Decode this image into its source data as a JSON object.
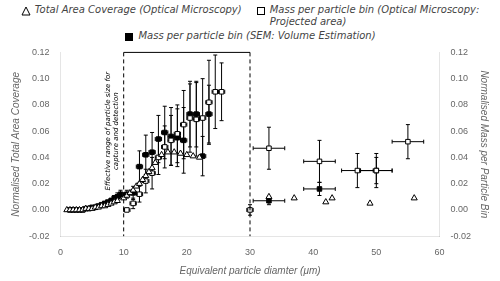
{
  "chart_data": {
    "type": "scatter",
    "xlabel": "Equivalent particle diamter (μm)",
    "ylabel": "Normalised Total Area Coverage",
    "y2label": "Normalised Mass per Particle Bin",
    "xlim": [
      0,
      60
    ],
    "xticks": [
      0,
      10,
      20,
      30,
      40,
      50,
      60
    ],
    "ylim": [
      -0.02,
      0.12
    ],
    "yticks": [
      -0.02,
      {
        "value": 0,
        "label": "0.00"
      },
      0.02,
      0.04,
      0.06,
      0.08,
      {
        "value": 0.1,
        "label": "0.10"
      },
      0.12
    ],
    "y2lim": [
      -0.02,
      0.12
    ],
    "y2ticks": [
      -0.02,
      {
        "value": 0,
        "label": "0.00"
      },
      0.02,
      0.04,
      0.06,
      0.08,
      {
        "value": 0.1,
        "label": "0.10"
      },
      0.12
    ],
    "grid": false,
    "legend": "top",
    "series": [
      {
        "name": "Total Area Coverage (Optical Microscopy)",
        "color": "#000000",
        "marker": "triangle_open",
        "axis": "y",
        "x": [
          1.0,
          1.5,
          2.0,
          2.5,
          3.0,
          3.5,
          4.0,
          4.5,
          5.0,
          5.5,
          6.0,
          6.5,
          7.0,
          7.5,
          8.0,
          8.5,
          9.0,
          10.0,
          10.5,
          11.0,
          11.5,
          12.0,
          12.5,
          13.0,
          13.5,
          14.0,
          14.5,
          15.0,
          16.0,
          17.0,
          18.0,
          19.0,
          20.0,
          21.0,
          22.0,
          33,
          37,
          42,
          43,
          49,
          56
        ],
        "values": [
          0.0,
          0.0,
          0.0,
          0.0,
          0.0,
          0.0,
          0.001,
          0.001,
          0.001,
          0.002,
          0.002,
          0.003,
          0.003,
          0.004,
          0.005,
          0.006,
          0.007,
          0.009,
          0.011,
          0.013,
          0.015,
          0.018,
          0.02,
          0.023,
          0.026,
          0.029,
          0.032,
          0.036,
          0.042,
          0.044,
          0.044,
          0.043,
          0.042,
          0.041,
          0.04,
          0.01,
          0.009,
          0.006,
          0.009,
          0.005,
          0.009
        ]
      },
      {
        "name": "Mass per particle bin (Optical Microscopy:\nProjected area)",
        "color": "#000000",
        "marker": "square_open",
        "axis": "y2",
        "x": [
          10.5,
          11.5,
          12.5,
          13.5,
          14.5,
          15.5,
          16.5,
          17.5,
          18.5,
          19.5,
          20.5,
          21.5,
          22.5,
          23.5,
          24.5,
          25.5,
          30,
          33,
          41,
          47,
          50,
          55
        ],
        "values": [
          0.0,
          0.005,
          0.012,
          0.022,
          0.028,
          0.04,
          0.048,
          0.053,
          0.058,
          0.065,
          0.07,
          0.069,
          0.07,
          0.082,
          0.09,
          0.09,
          0.0,
          0.047,
          0.037,
          0.03,
          0.03,
          0.052
        ],
        "yerr": [
          0.001,
          0.004,
          0.006,
          0.009,
          0.012,
          0.013,
          0.016,
          0.019,
          0.022,
          0.026,
          0.026,
          0.028,
          0.03,
          0.032,
          0.028,
          0.022,
          0.004,
          0.016,
          0.016,
          0.013,
          0.013,
          0.013
        ],
        "xerr": [
          0.5,
          0.5,
          0.5,
          0.5,
          0.5,
          0.5,
          0.5,
          0.5,
          0.5,
          0.5,
          0.5,
          0.5,
          0.5,
          0.5,
          0.5,
          0.5,
          0.5,
          2.5,
          2.5,
          2.5,
          2.5,
          2.5
        ]
      },
      {
        "name": "Mass per particle bin (SEM: Volume Estimation)",
        "color": "#000000",
        "marker": "square",
        "axis": "y2",
        "x": [
          1.5,
          2.0,
          2.5,
          3.0,
          3.5,
          4.0,
          4.5,
          5.0,
          5.5,
          6.0,
          6.5,
          7.0,
          7.5,
          8.0,
          8.5,
          9.0,
          9.5,
          10.5,
          11.5,
          12.5,
          13.5,
          14.5,
          15.5,
          16.5,
          17.5,
          18.5,
          19.5,
          20.5,
          21.5,
          22.5,
          23.5,
          33,
          41,
          50
        ],
        "values": [
          0.0,
          0.0,
          0.0,
          0.0,
          0.0,
          0.001,
          0.001,
          0.002,
          0.002,
          0.003,
          0.004,
          0.005,
          0.006,
          0.007,
          0.009,
          0.01,
          0.012,
          0.012,
          0.013,
          0.033,
          0.042,
          0.044,
          0.054,
          0.059,
          0.056,
          0.055,
          0.053,
          0.073,
          0.073,
          0.041,
          0.073,
          0.007,
          0.016,
          0.03
        ],
        "yerr": [
          0.0,
          0.0,
          0.0,
          0.0,
          0.0,
          0.0,
          0.0,
          0.0,
          0.0,
          0.0,
          0.0,
          0.001,
          0.001,
          0.002,
          0.002,
          0.003,
          0.003,
          0.003,
          0.005,
          0.012,
          0.015,
          0.015,
          0.018,
          0.02,
          0.022,
          0.022,
          0.025,
          0.025,
          0.025,
          0.015,
          0.022,
          0.003,
          0.005,
          0.01
        ],
        "xerr": [
          0.0,
          0.0,
          0.0,
          0.0,
          0.0,
          0.0,
          0.0,
          0.0,
          0.0,
          0.0,
          0.0,
          0.0,
          0.0,
          0.0,
          0.0,
          0.0,
          0.0,
          0.5,
          0.5,
          0.5,
          0.5,
          0.5,
          0.5,
          0.5,
          0.5,
          0.5,
          0.5,
          0.5,
          0.5,
          0.5,
          0.5,
          2.5,
          2.5,
          2.5
        ]
      }
    ],
    "annotations": [
      {
        "type": "vline",
        "x": 10,
        "line_style": "dashed",
        "color": "#000000"
      },
      {
        "type": "vline",
        "x": 30,
        "line_style": "dashed",
        "color": "#000000"
      },
      {
        "type": "hline",
        "x": [
          10,
          30
        ],
        "y": 0.12,
        "color": "#000000"
      },
      {
        "type": "text",
        "text": "Effective range of particle size for\ncapture and detection",
        "x": 9.3,
        "y": 0.06,
        "color": "#000000"
      }
    ]
  }
}
